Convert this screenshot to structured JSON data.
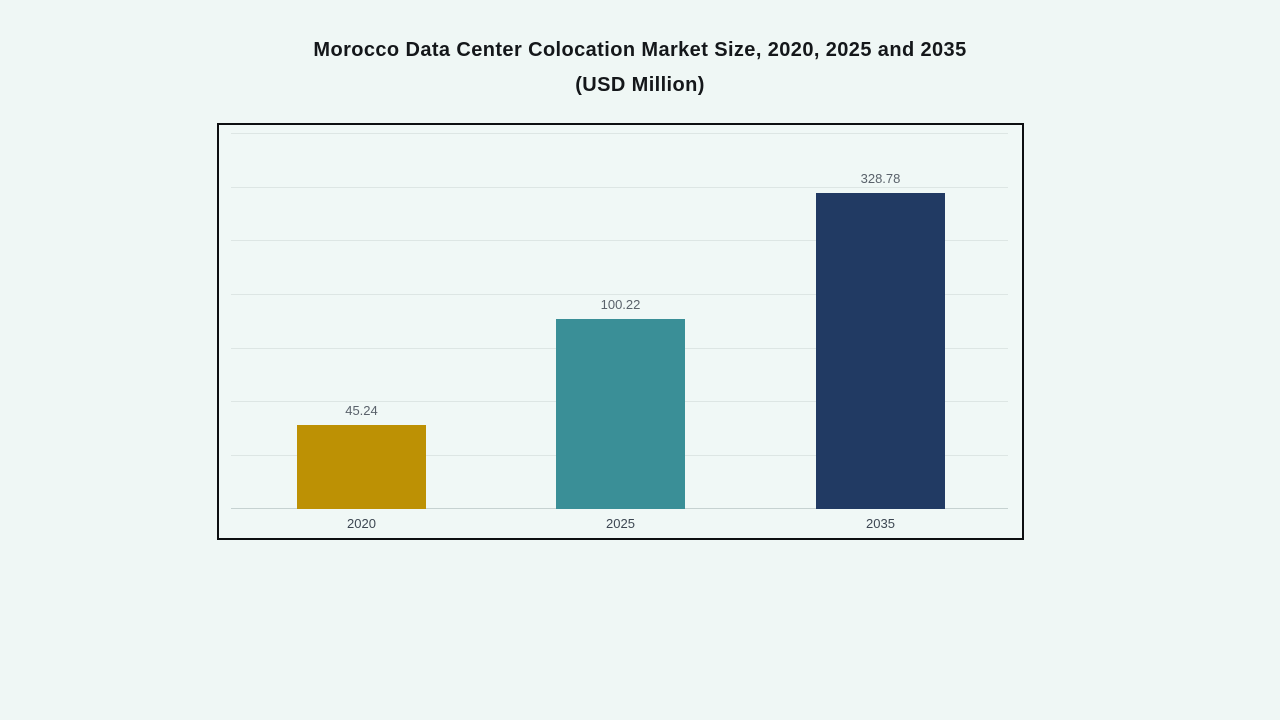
{
  "title": {
    "line1": "Morocco Data Center Colocation Market Size, 2020, 2025 and 2035",
    "line2": "(USD Million)"
  },
  "chart_data": {
    "type": "bar",
    "title": "Morocco Data Center Colocation Market Size, 2020, 2025 and 2035 (USD Million)",
    "unit": "USD Million",
    "categories": [
      "2020",
      "2025",
      "2035"
    ],
    "values": [
      45.24,
      100.22,
      328.78
    ],
    "value_labels": [
      "45.24",
      "100.22",
      "328.78"
    ],
    "bar_colors": [
      "#bd9104",
      "#3a8f97",
      "#213a63"
    ],
    "grid": true,
    "gridline_count": 8,
    "legend": false,
    "y_axis_tick_labels_visible": false
  },
  "styles": {
    "page_background": "#eff7f5",
    "panel_background": "#f0f8f6",
    "panel_border": "#0d0f11",
    "gridline_color": "#dde6e4",
    "axis_line_color": "#c6d2d1",
    "title_color": "#14171a",
    "value_label_color": "#5a626b",
    "tick_label_color": "#3d4752"
  }
}
